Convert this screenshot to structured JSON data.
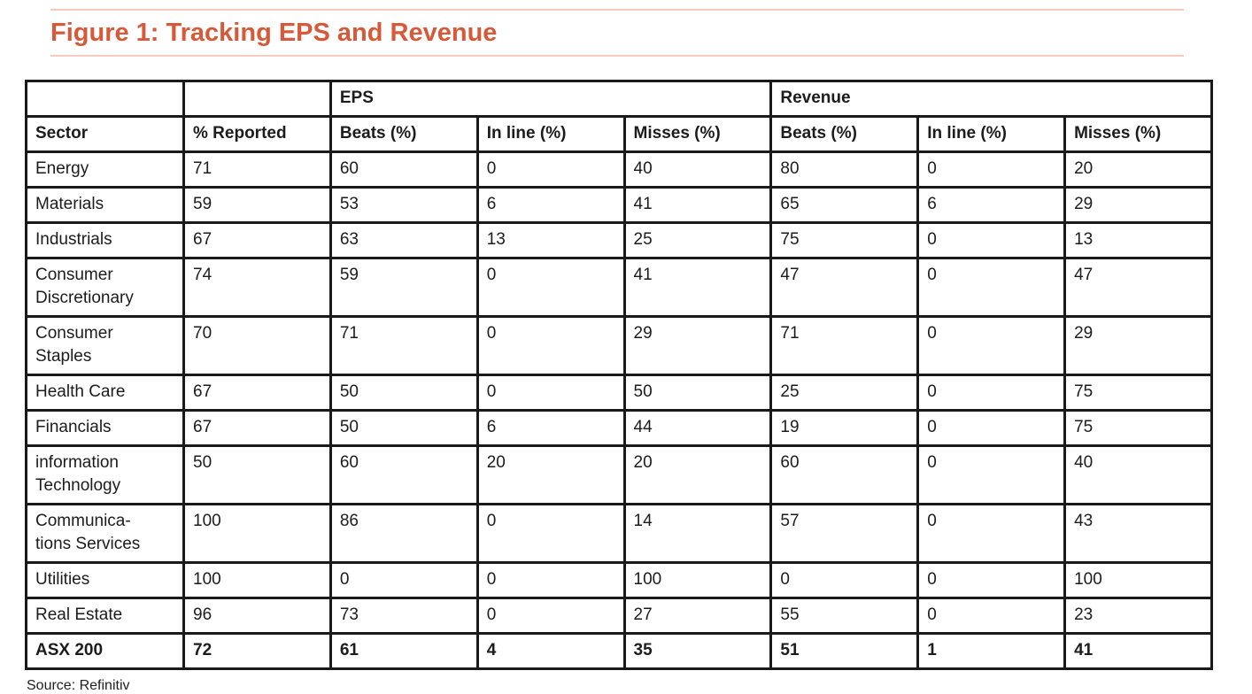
{
  "figure": {
    "title": "Figure 1: Tracking EPS and Revenue",
    "source": "Source: Refinitiv",
    "accent_color": "#d65a3a",
    "rule_color": "#f7cbbc",
    "border_color": "#1a1a1a"
  },
  "table": {
    "group_headers": [
      {
        "label": "",
        "span": 1
      },
      {
        "label": "",
        "span": 1
      },
      {
        "label": "EPS",
        "span": 3
      },
      {
        "label": "Revenue",
        "span": 3
      }
    ],
    "columns": [
      "Sector",
      "% Reported",
      "Beats (%)",
      "In line (%)",
      "Misses (%)",
      "Beats (%)",
      "In line (%)",
      "Misses (%)"
    ],
    "rows": [
      {
        "sector": "Energy",
        "values": [
          71,
          60,
          0,
          40,
          80,
          0,
          20
        ],
        "bold": false
      },
      {
        "sector": "Materials",
        "values": [
          59,
          53,
          6,
          41,
          65,
          6,
          29
        ],
        "bold": false
      },
      {
        "sector": "Industrials",
        "values": [
          67,
          63,
          13,
          25,
          75,
          0,
          13
        ],
        "bold": false
      },
      {
        "sector": "Consumer\nDiscretionary",
        "values": [
          74,
          59,
          0,
          41,
          47,
          0,
          47
        ],
        "bold": false
      },
      {
        "sector": "Consumer\nStaples",
        "values": [
          70,
          71,
          0,
          29,
          71,
          0,
          29
        ],
        "bold": false
      },
      {
        "sector": "Health Care",
        "values": [
          67,
          50,
          0,
          50,
          25,
          0,
          75
        ],
        "bold": false
      },
      {
        "sector": "Financials",
        "values": [
          67,
          50,
          6,
          44,
          19,
          0,
          75
        ],
        "bold": false
      },
      {
        "sector": "information\nTechnology",
        "values": [
          50,
          60,
          20,
          20,
          60,
          0,
          40
        ],
        "bold": false
      },
      {
        "sector": "Communica-\ntions Services",
        "values": [
          100,
          86,
          0,
          14,
          57,
          0,
          43
        ],
        "bold": false
      },
      {
        "sector": "Utilities",
        "values": [
          100,
          0,
          0,
          100,
          0,
          0,
          100
        ],
        "bold": false
      },
      {
        "sector": "Real Estate",
        "values": [
          96,
          73,
          0,
          27,
          55,
          0,
          23
        ],
        "bold": false
      },
      {
        "sector": "ASX 200",
        "values": [
          72,
          61,
          4,
          35,
          51,
          1,
          41
        ],
        "bold": true
      }
    ]
  }
}
